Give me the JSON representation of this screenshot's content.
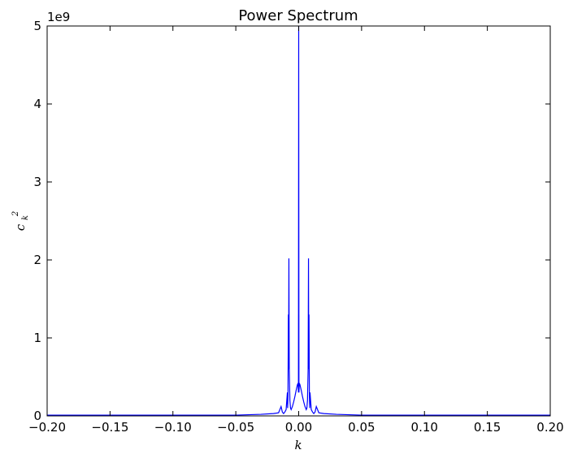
{
  "chart_data": {
    "type": "line",
    "title": "Power Spectrum",
    "xlabel": "k",
    "ylabel_base": "c",
    "ylabel_sup": "2",
    "ylabel_sub": "k",
    "offset_text": "1e9",
    "xlim": [
      -0.2,
      0.2
    ],
    "ylim": [
      0,
      5
    ],
    "y_scale_multiplier": 1000000000,
    "xticks": [
      -0.2,
      -0.15,
      -0.1,
      -0.05,
      0.0,
      0.05,
      0.1,
      0.15,
      0.2
    ],
    "xtick_labels": [
      "−0.20",
      "−0.15",
      "−0.10",
      "−0.05",
      "0.00",
      "0.05",
      "0.10",
      "0.15",
      "0.20"
    ],
    "yticks": [
      0,
      1,
      2,
      3,
      4,
      5
    ],
    "ytick_labels": [
      "0",
      "1",
      "2",
      "3",
      "4",
      "5"
    ],
    "grid": false,
    "series": [
      {
        "color": "#0000ff",
        "points": [
          [
            -0.2,
            0.01
          ],
          [
            -0.05,
            0.01
          ],
          [
            -0.03,
            0.02
          ],
          [
            -0.02,
            0.03
          ],
          [
            -0.016,
            0.04
          ],
          [
            -0.015,
            0.08
          ],
          [
            -0.014,
            0.12
          ],
          [
            -0.013,
            0.05
          ],
          [
            -0.012,
            0.03
          ],
          [
            -0.011,
            0.05
          ],
          [
            -0.01,
            0.08
          ],
          [
            -0.009,
            0.3
          ],
          [
            -0.0088,
            0.1
          ],
          [
            -0.0085,
            0.25
          ],
          [
            -0.0082,
            1.3
          ],
          [
            -0.008,
            0.6
          ],
          [
            -0.0078,
            2.02
          ],
          [
            -0.0075,
            0.6
          ],
          [
            -0.007,
            0.2
          ],
          [
            -0.0065,
            0.1
          ],
          [
            -0.006,
            0.08
          ],
          [
            -0.005,
            0.12
          ],
          [
            -0.004,
            0.18
          ],
          [
            -0.003,
            0.25
          ],
          [
            -0.002,
            0.33
          ],
          [
            -0.001,
            0.4
          ],
          [
            -0.0005,
            0.42
          ],
          [
            -0.0002,
            0.3
          ],
          [
            0.0,
            5.0
          ],
          [
            0.0002,
            0.3
          ],
          [
            0.0005,
            0.42
          ],
          [
            0.001,
            0.4
          ],
          [
            0.002,
            0.33
          ],
          [
            0.003,
            0.25
          ],
          [
            0.004,
            0.18
          ],
          [
            0.005,
            0.12
          ],
          [
            0.006,
            0.08
          ],
          [
            0.0065,
            0.1
          ],
          [
            0.007,
            0.2
          ],
          [
            0.0075,
            0.6
          ],
          [
            0.0078,
            2.02
          ],
          [
            0.008,
            0.6
          ],
          [
            0.0082,
            1.3
          ],
          [
            0.0085,
            0.25
          ],
          [
            0.0088,
            0.1
          ],
          [
            0.009,
            0.3
          ],
          [
            0.01,
            0.08
          ],
          [
            0.011,
            0.05
          ],
          [
            0.012,
            0.03
          ],
          [
            0.013,
            0.05
          ],
          [
            0.014,
            0.12
          ],
          [
            0.015,
            0.08
          ],
          [
            0.016,
            0.04
          ],
          [
            0.02,
            0.03
          ],
          [
            0.03,
            0.02
          ],
          [
            0.05,
            0.01
          ],
          [
            0.2,
            0.01
          ]
        ]
      }
    ]
  }
}
